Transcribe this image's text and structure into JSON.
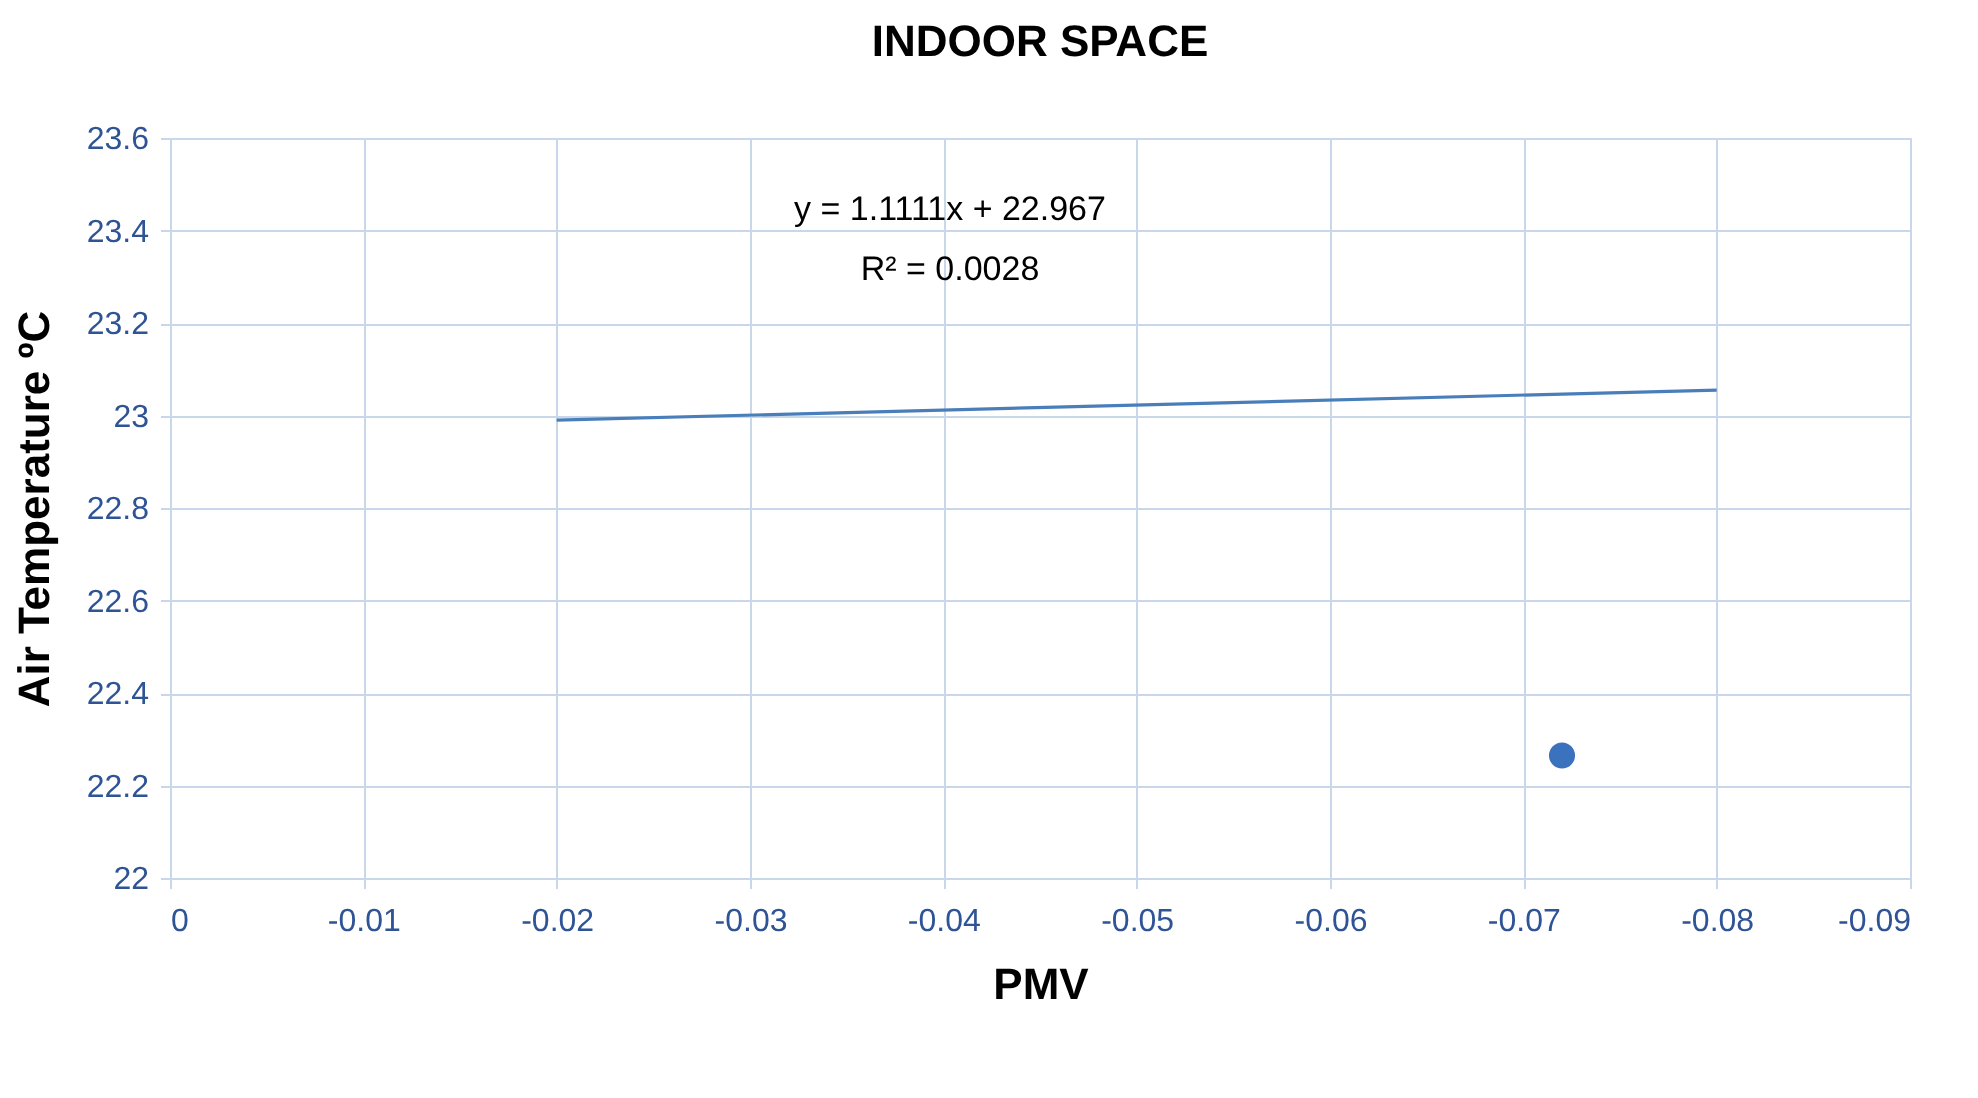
{
  "chart_data": {
    "type": "scatter",
    "title": "INDOOR SPACE",
    "xlabel": "PMV",
    "ylabel": "Air Temperature ºC",
    "xlim": [
      0,
      -0.09
    ],
    "xticks": [
      0,
      -0.01,
      -0.02,
      -0.03,
      -0.04,
      -0.05,
      -0.06,
      -0.07,
      -0.08,
      -0.09
    ],
    "ylim": [
      22,
      23.6
    ],
    "yticks": [
      22,
      22.2,
      22.4,
      22.6,
      22.8,
      23,
      23.2,
      23.4,
      23.6
    ],
    "grid": true,
    "legend": false,
    "annotations": [
      "y = 1.1111x + 22.967",
      "R² = 0.0028"
    ],
    "series": [
      {
        "color": "#3a72bd",
        "marker": "circle",
        "x": [
          -0.072
        ],
        "values": [
          22.265
        ]
      },
      {
        "type": "line",
        "color": "#4a7ebb",
        "line_style": "solid",
        "x": [
          -0.02,
          -0.08
        ],
        "values": [
          22.99,
          23.055
        ]
      }
    ]
  }
}
